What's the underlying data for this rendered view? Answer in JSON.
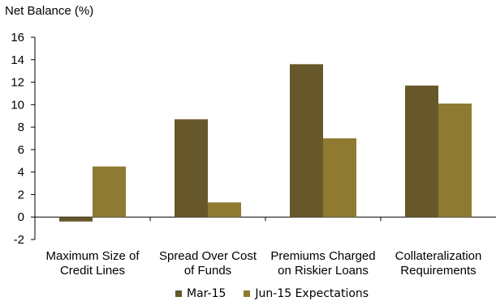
{
  "chart_data": {
    "type": "bar",
    "title": "",
    "ylabel": "Net Balance (%)",
    "xlabel": "",
    "ylim": [
      -2,
      16
    ],
    "yticks": [
      -2,
      0,
      2,
      4,
      6,
      8,
      10,
      12,
      14,
      16
    ],
    "grid": false,
    "legend_position": "bottom",
    "categories": [
      [
        "Maximum Size of",
        "Credit Lines"
      ],
      [
        "Spread Over Cost",
        "of Funds"
      ],
      [
        "Premiums Charged",
        "on Riskier Loans"
      ],
      [
        "Collateralization",
        "Requirements"
      ]
    ],
    "series": [
      {
        "name": "Mar-15",
        "color": "#66582a",
        "values": [
          -0.4,
          8.7,
          13.6,
          11.7
        ]
      },
      {
        "name": "Jun-15 Expectations",
        "color": "#8e7a31",
        "values": [
          4.5,
          1.3,
          7.0,
          10.1
        ]
      }
    ]
  }
}
